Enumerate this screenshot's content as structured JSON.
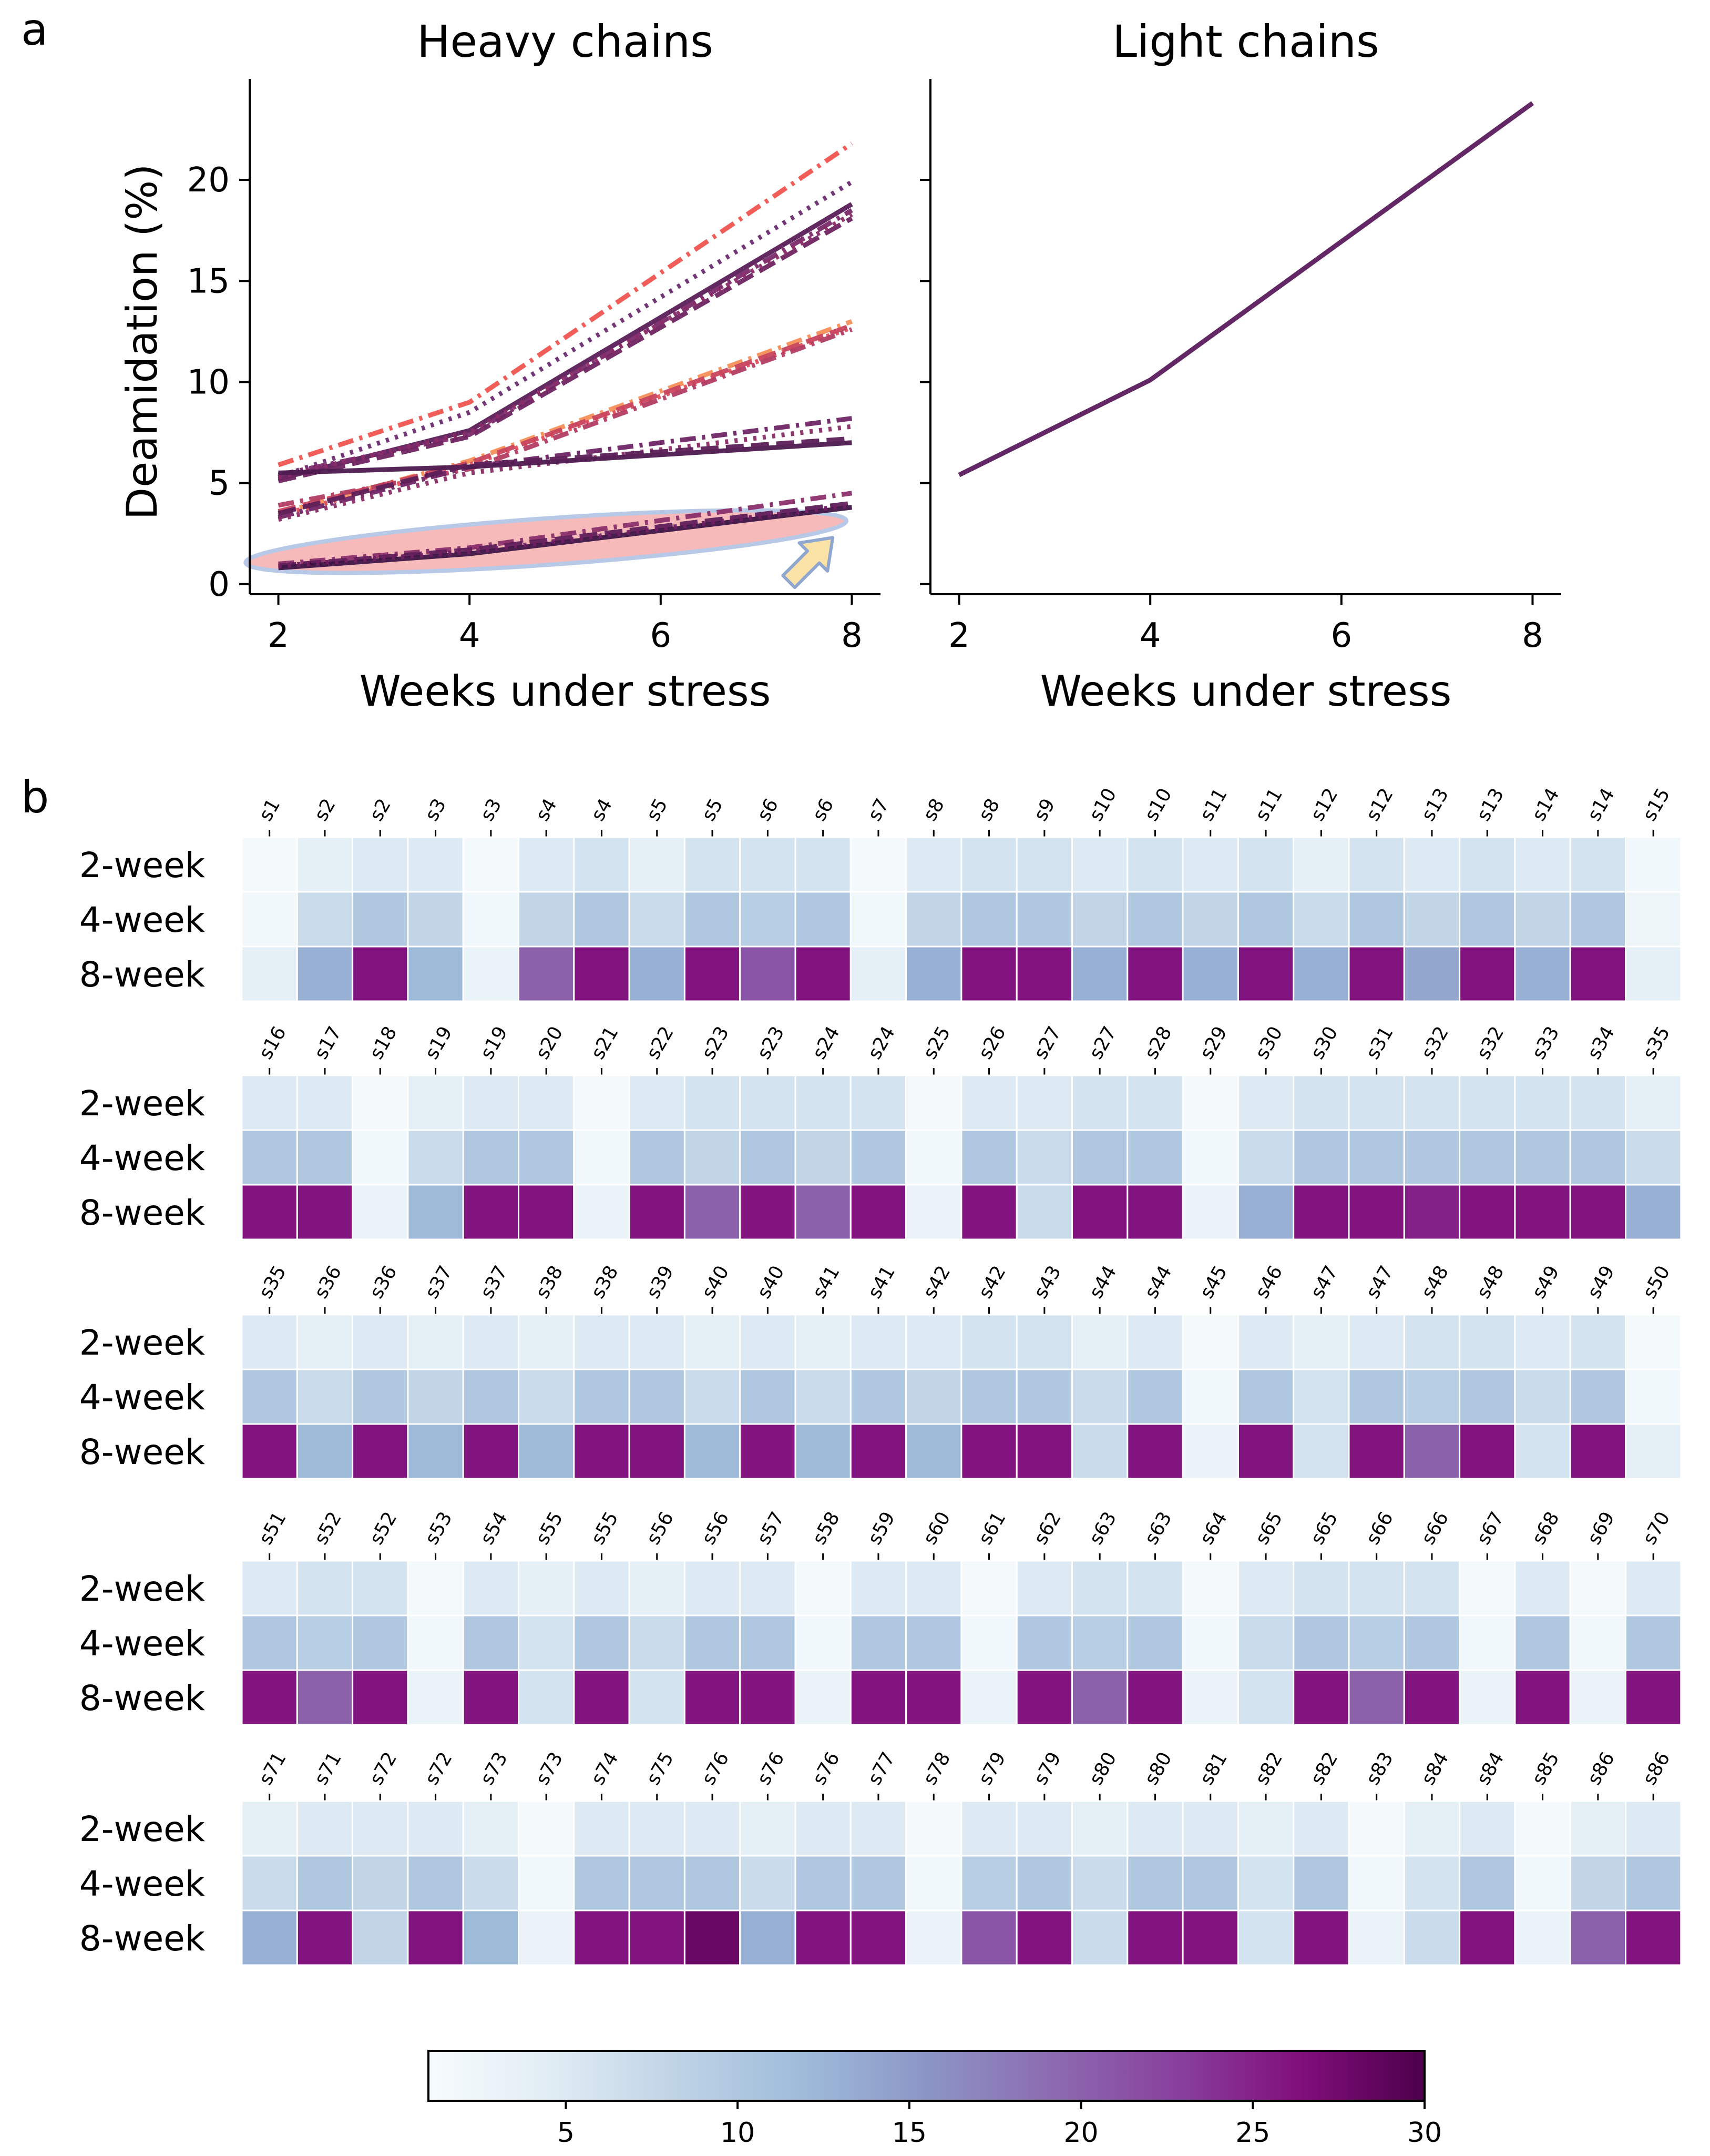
{
  "figure": {
    "panel_a_letter": "a",
    "panel_b_letter": "b"
  },
  "chart_data": [
    {
      "type": "line",
      "title": "Heavy chains",
      "xlabel": "Weeks under stress",
      "ylabel": "Deamidation (%)",
      "x": [
        2,
        4,
        8
      ],
      "xticks": [
        "2",
        "4",
        "6",
        "8"
      ],
      "xlim": [
        1.7,
        8.3
      ],
      "yticks": [
        "0",
        "5",
        "10",
        "15",
        "20"
      ],
      "ylim": [
        -0.5,
        25
      ],
      "highlight": {
        "description": "low deamidation group",
        "center": [
          4.8,
          2.1
        ],
        "x_half_width": 3.15,
        "y_half_height": 1.15,
        "arrow_at": [
          7.8,
          2.3
        ]
      },
      "series": [
        {
          "values": [
            5.9,
            9.0,
            21.8
          ],
          "color": "#f0544f",
          "dash": "dashdot"
        },
        {
          "values": [
            5.3,
            8.5,
            19.9
          ],
          "color": "#6c2b6f",
          "dash": "dot"
        },
        {
          "values": [
            5.2,
            7.6,
            18.8
          ],
          "color": "#5b1f59",
          "dash": "solid"
        },
        {
          "values": [
            5.4,
            7.4,
            18.5
          ],
          "color": "#7a2a6a",
          "dash": "dashdot"
        },
        {
          "values": [
            5.1,
            7.3,
            18.1
          ],
          "color": "#6f2461",
          "dash": "dash"
        },
        {
          "values": [
            5.3,
            7.5,
            18.3
          ],
          "color": "#8a2c67",
          "dash": "dot"
        },
        {
          "values": [
            3.5,
            6.1,
            13.0
          ],
          "color": "#f78f5a",
          "dash": "dashdot"
        },
        {
          "values": [
            3.4,
            5.9,
            12.7
          ],
          "color": "#e04e5a",
          "dash": "dot"
        },
        {
          "values": [
            3.6,
            6.0,
            12.8
          ],
          "color": "#c8455e",
          "dash": "dash"
        },
        {
          "values": [
            3.9,
            5.7,
            12.6
          ],
          "color": "#b33d62",
          "dash": "dashdot"
        },
        {
          "values": [
            3.3,
            5.8,
            8.2
          ],
          "color": "#6e2565",
          "dash": "dashdot"
        },
        {
          "values": [
            3.2,
            5.5,
            7.8
          ],
          "color": "#8a2d66",
          "dash": "dot"
        },
        {
          "values": [
            5.5,
            5.8,
            7.0
          ],
          "color": "#4d1a4f",
          "dash": "solid"
        },
        {
          "values": [
            3.5,
            5.9,
            7.2
          ],
          "color": "#5c2058",
          "dash": "dash"
        },
        {
          "values": [
            1.0,
            1.8,
            4.5
          ],
          "color": "#8b2f6b",
          "dash": "dashdot"
        },
        {
          "values": [
            0.9,
            1.7,
            4.0
          ],
          "color": "#5e1f5a",
          "dash": "dash"
        },
        {
          "values": [
            0.8,
            1.5,
            3.8
          ],
          "color": "#3e1546",
          "dash": "solid"
        },
        {
          "values": [
            0.9,
            1.6,
            3.9
          ],
          "color": "#701f63",
          "dash": "dot"
        }
      ]
    },
    {
      "type": "line",
      "title": "Light chains",
      "xlabel": "Weeks under stress",
      "ylabel": "",
      "x": [
        2,
        4,
        8
      ],
      "xticks": [
        "2",
        "4",
        "6",
        "8"
      ],
      "xlim": [
        1.7,
        8.3
      ],
      "ylim": [
        -0.5,
        25
      ],
      "series": [
        {
          "values": [
            5.4,
            10.1,
            23.8
          ],
          "color": "#5a1b5c",
          "dash": "solid"
        }
      ]
    },
    {
      "type": "heatmap",
      "row_labels": [
        "2-week",
        "4-week",
        "8-week"
      ],
      "vmin": 1,
      "vmax": 30,
      "colorbar_ticks": [
        "5",
        "10",
        "15",
        "20",
        "25",
        "30"
      ],
      "blocks": [
        {
          "columns": [
            "s1",
            "s2",
            "s2",
            "s3",
            "s3",
            "s4",
            "s4",
            "s5",
            "s5",
            "s6",
            "s6",
            "s7",
            "s8",
            "s8",
            "s9",
            "s10",
            "s10",
            "s11",
            "s11",
            "s12",
            "s12",
            "s13",
            "s13",
            "s14",
            "s14",
            "s15"
          ],
          "rows": [
            [
              1.5,
              4,
              5,
              5,
              1.5,
              5,
              6,
              4,
              6,
              6,
              6,
              1.5,
              5,
              6,
              6,
              5,
              6,
              5,
              6,
              4,
              6,
              5,
              6,
              5,
              6,
              2
            ],
            [
              2,
              7,
              10,
              8,
              2,
              8,
              10,
              7,
              10,
              9,
              10,
              2,
              8,
              10,
              10,
              8,
              10,
              8,
              10,
              7,
              10,
              8,
              10,
              8,
              10,
              2.5
            ],
            [
              4,
              13,
              26,
              12,
              3,
              20,
              26,
              13,
              26,
              21,
              26,
              4,
              13,
              26,
              26,
              13,
              26,
              13,
              26,
              13,
              26,
              14,
              26,
              13,
              26,
              4
            ]
          ]
        },
        {
          "columns": [
            "s16",
            "s17",
            "s18",
            "s19",
            "s19",
            "s20",
            "s21",
            "s22",
            "s23",
            "s23",
            "s24",
            "s24",
            "s25",
            "s26",
            "s27",
            "s27",
            "s28",
            "s29",
            "s30",
            "s30",
            "s31",
            "s32",
            "s32",
            "s33",
            "s34",
            "s35"
          ],
          "rows": [
            [
              5,
              5,
              1.5,
              4,
              5,
              5,
              1.5,
              5,
              6,
              6,
              6,
              6,
              1.5,
              5,
              5,
              6,
              6,
              1.5,
              5,
              6,
              6,
              6,
              6,
              6,
              6,
              4
            ],
            [
              10,
              10,
              2,
              7,
              10,
              10,
              2,
              10,
              8,
              10,
              8,
              10,
              2,
              10,
              7,
              10,
              10,
              2,
              7,
              10,
              10,
              10,
              10,
              10,
              10,
              7
            ],
            [
              26,
              26,
              3,
              12,
              26,
              26,
              3,
              26,
              20,
              26,
              20,
              26,
              3,
              26,
              7,
              26,
              26,
              3,
              13,
              26,
              26,
              25,
              26,
              26,
              26,
              13
            ]
          ]
        },
        {
          "columns": [
            "s35",
            "s36",
            "s36",
            "s37",
            "s37",
            "s38",
            "s38",
            "s39",
            "s40",
            "s40",
            "s41",
            "s41",
            "s42",
            "s42",
            "s43",
            "s44",
            "s44",
            "s45",
            "s46",
            "s47",
            "s47",
            "s48",
            "s48",
            "s49",
            "s49",
            "s50"
          ],
          "rows": [
            [
              5,
              4,
              5,
              4,
              5,
              4,
              5,
              5,
              4,
              5,
              4,
              5,
              5,
              6,
              6,
              4,
              5,
              1.5,
              5,
              4,
              5,
              6,
              6,
              5,
              6,
              1.5
            ],
            [
              10,
              7,
              10,
              8,
              10,
              7,
              10,
              10,
              7,
              10,
              7,
              10,
              8,
              10,
              10,
              7,
              10,
              2,
              10,
              6,
              10,
              9,
              10,
              7,
              10,
              2
            ],
            [
              26,
              12,
              26,
              12,
              26,
              12,
              26,
              26,
              12,
              26,
              12,
              26,
              12,
              26,
              26,
              7,
              26,
              3,
              26,
              6,
              26,
              20,
              26,
              6,
              26,
              4
            ]
          ]
        },
        {
          "columns": [
            "s51",
            "s52",
            "s52",
            "s53",
            "s54",
            "s55",
            "s55",
            "s56",
            "s56",
            "s57",
            "s58",
            "s59",
            "s60",
            "s61",
            "s62",
            "s63",
            "s63",
            "s64",
            "s65",
            "s65",
            "s66",
            "s66",
            "s67",
            "s68",
            "s69",
            "s70"
          ],
          "rows": [
            [
              5,
              6,
              6,
              1.5,
              5,
              4,
              5,
              4,
              5,
              5,
              1.5,
              5,
              5,
              1.5,
              5,
              6,
              6,
              1.5,
              5,
              6,
              6,
              6,
              1.5,
              5,
              1.5,
              5
            ],
            [
              10,
              9,
              10,
              2,
              10,
              6,
              10,
              7,
              10,
              10,
              2,
              10,
              10,
              2,
              10,
              9,
              10,
              2,
              7,
              10,
              9,
              10,
              2,
              10,
              2,
              10
            ],
            [
              26,
              20,
              26,
              3,
              26,
              6,
              26,
              6,
              26,
              26,
              3,
              26,
              26,
              3,
              26,
              20,
              26,
              3,
              6,
              26,
              20,
              26,
              3,
              26,
              3,
              26
            ]
          ]
        },
        {
          "columns": [
            "s71",
            "s71",
            "s72",
            "s72",
            "s73",
            "s73",
            "s74",
            "s75",
            "s76",
            "s76",
            "s76",
            "s77",
            "s78",
            "s79",
            "s79",
            "s80",
            "s80",
            "s81",
            "s82",
            "s82",
            "s83",
            "s84",
            "s84",
            "s85",
            "s86",
            "s86"
          ],
          "rows": [
            [
              4,
              5,
              5,
              5,
              4,
              1.5,
              5,
              5,
              5,
              4,
              5,
              5,
              1.5,
              5,
              5,
              4,
              5,
              5,
              4,
              5,
              1.5,
              4,
              5,
              1.5,
              4,
              5
            ],
            [
              7,
              10,
              8,
              10,
              7,
              2,
              10,
              10,
              10,
              7,
              10,
              10,
              2,
              9,
              10,
              7,
              10,
              10,
              6,
              10,
              2,
              6,
              10,
              2,
              8,
              10
            ],
            [
              13,
              26,
              8,
              26,
              12,
              3,
              26,
              26,
              28,
              13,
              26,
              26,
              3,
              21,
              26,
              7,
              26,
              26,
              6,
              26,
              3,
              7,
              26,
              3,
              20,
              26
            ]
          ]
        }
      ]
    }
  ]
}
